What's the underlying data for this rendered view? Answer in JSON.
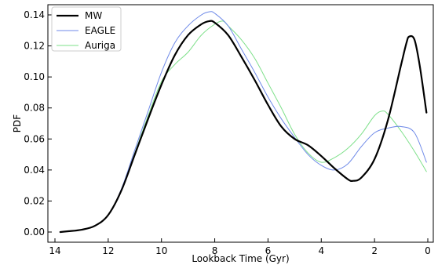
{
  "chart_data": {
    "type": "line",
    "title": "",
    "xlabel": "Lookback Time (Gyr)",
    "ylabel": "PDF",
    "xlim": [
      14,
      0
    ],
    "ylim": [
      0,
      0.145
    ],
    "x_inverted": true,
    "grid": false,
    "legend_position": "top-left",
    "x_ticks": [
      14,
      12,
      10,
      8,
      6,
      4,
      2,
      0
    ],
    "y_ticks": [
      0.0,
      0.02,
      0.04,
      0.06,
      0.08,
      0.1,
      0.12,
      0.14
    ],
    "x_tick_labels": [
      "14",
      "12",
      "10",
      "8",
      "6",
      "4",
      "2",
      "0"
    ],
    "y_tick_labels": [
      "0.00",
      "0.02",
      "0.04",
      "0.06",
      "0.08",
      "0.10",
      "0.12",
      "0.14"
    ],
    "series": [
      {
        "name": "MW",
        "color": "#000000",
        "x": [
          13.8,
          13.5,
          13.0,
          12.5,
          12.0,
          11.5,
          11.0,
          10.5,
          10.0,
          9.5,
          9.0,
          8.5,
          8.2,
          8.0,
          7.5,
          7.0,
          6.5,
          6.0,
          5.5,
          5.0,
          4.5,
          4.0,
          3.5,
          3.0,
          2.8,
          2.5,
          2.0,
          1.5,
          1.0,
          0.8,
          0.7,
          0.5,
          0.3,
          0.05
        ],
        "y": [
          0.0,
          0.0005,
          0.0015,
          0.004,
          0.011,
          0.027,
          0.05,
          0.073,
          0.095,
          0.114,
          0.127,
          0.134,
          0.136,
          0.135,
          0.127,
          0.113,
          0.098,
          0.082,
          0.068,
          0.06,
          0.056,
          0.049,
          0.041,
          0.034,
          0.033,
          0.035,
          0.047,
          0.072,
          0.108,
          0.122,
          0.126,
          0.124,
          0.107,
          0.077
        ]
      },
      {
        "name": "EAGLE",
        "color": "#6f8ae8",
        "x": [
          13.8,
          13.5,
          13.0,
          12.5,
          12.0,
          11.5,
          11.0,
          10.5,
          10.0,
          9.5,
          9.0,
          8.5,
          8.2,
          8.0,
          7.5,
          7.0,
          6.5,
          6.0,
          5.5,
          5.0,
          4.5,
          4.0,
          3.5,
          3.0,
          2.5,
          2.0,
          1.5,
          1.0,
          0.5,
          0.05
        ],
        "y": [
          0.0,
          0.0005,
          0.0015,
          0.004,
          0.011,
          0.028,
          0.053,
          0.078,
          0.103,
          0.122,
          0.133,
          0.14,
          0.142,
          0.141,
          0.133,
          0.118,
          0.103,
          0.087,
          0.073,
          0.061,
          0.05,
          0.043,
          0.04,
          0.044,
          0.055,
          0.064,
          0.067,
          0.068,
          0.064,
          0.045
        ]
      },
      {
        "name": "Auriga",
        "color": "#7ee08a",
        "x": [
          13.8,
          13.5,
          13.0,
          12.5,
          12.0,
          11.5,
          11.0,
          10.5,
          10.0,
          9.5,
          9.0,
          8.5,
          8.0,
          7.7,
          7.5,
          7.0,
          6.5,
          6.0,
          5.5,
          5.0,
          4.5,
          4.0,
          3.5,
          3.0,
          2.5,
          2.0,
          1.7,
          1.5,
          1.0,
          0.5,
          0.05
        ],
        "y": [
          0.0,
          0.0005,
          0.0015,
          0.004,
          0.011,
          0.027,
          0.051,
          0.075,
          0.097,
          0.108,
          0.116,
          0.127,
          0.134,
          0.136,
          0.133,
          0.124,
          0.112,
          0.096,
          0.08,
          0.063,
          0.051,
          0.045,
          0.048,
          0.054,
          0.063,
          0.075,
          0.078,
          0.076,
          0.065,
          0.052,
          0.039
        ]
      }
    ]
  }
}
